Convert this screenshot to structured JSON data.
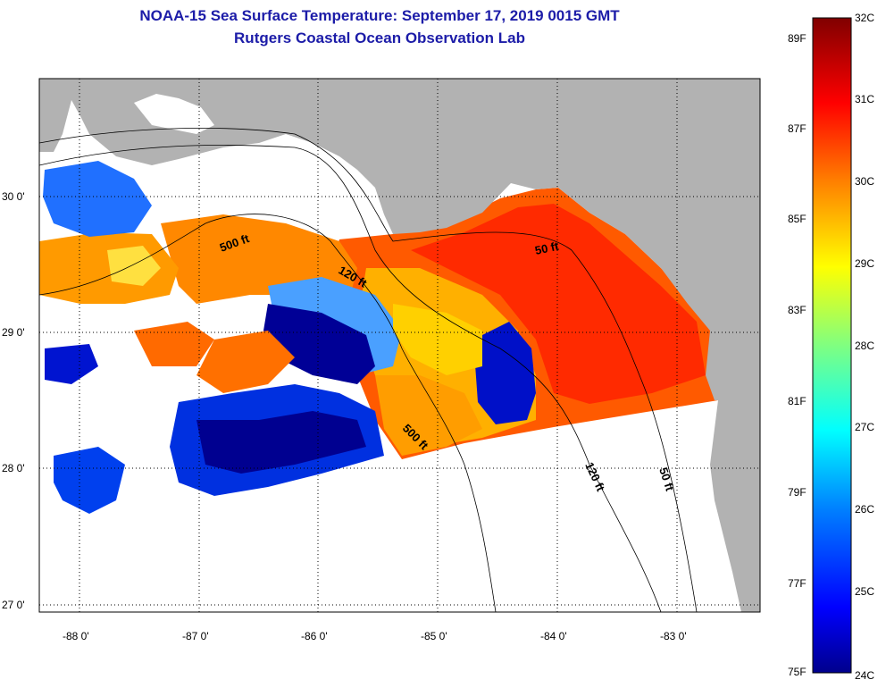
{
  "title": "NOAA-15 Sea Surface Temperature:  September 17, 2019 0015 GMT",
  "subtitle": "Rutgers Coastal Ocean Observation Lab",
  "latitude_ticks": [
    "30 0'",
    "29 0'",
    "28 0'",
    "27 0'"
  ],
  "longitude_ticks": [
    "-88 0'",
    "-87 0'",
    "-86 0'",
    "-85 0'",
    "-84 0'",
    "-83 0'"
  ],
  "colorbar": {
    "fahrenheit": [
      "89F",
      "87F",
      "85F",
      "83F",
      "81F",
      "79F",
      "77F",
      "75F"
    ],
    "celsius": [
      "32C",
      "31C",
      "30C",
      "29C",
      "28C",
      "27C",
      "26C",
      "25C",
      "24C"
    ]
  },
  "isobath_labels": [
    "500 ft",
    "120 ft",
    "50 ft",
    "500 ft",
    "120 ft",
    "50 ft"
  ],
  "colors": {
    "title": "#1c1ca8",
    "land": "#b2b2b2",
    "cold": "#00008c",
    "warm": "#ff3300"
  }
}
